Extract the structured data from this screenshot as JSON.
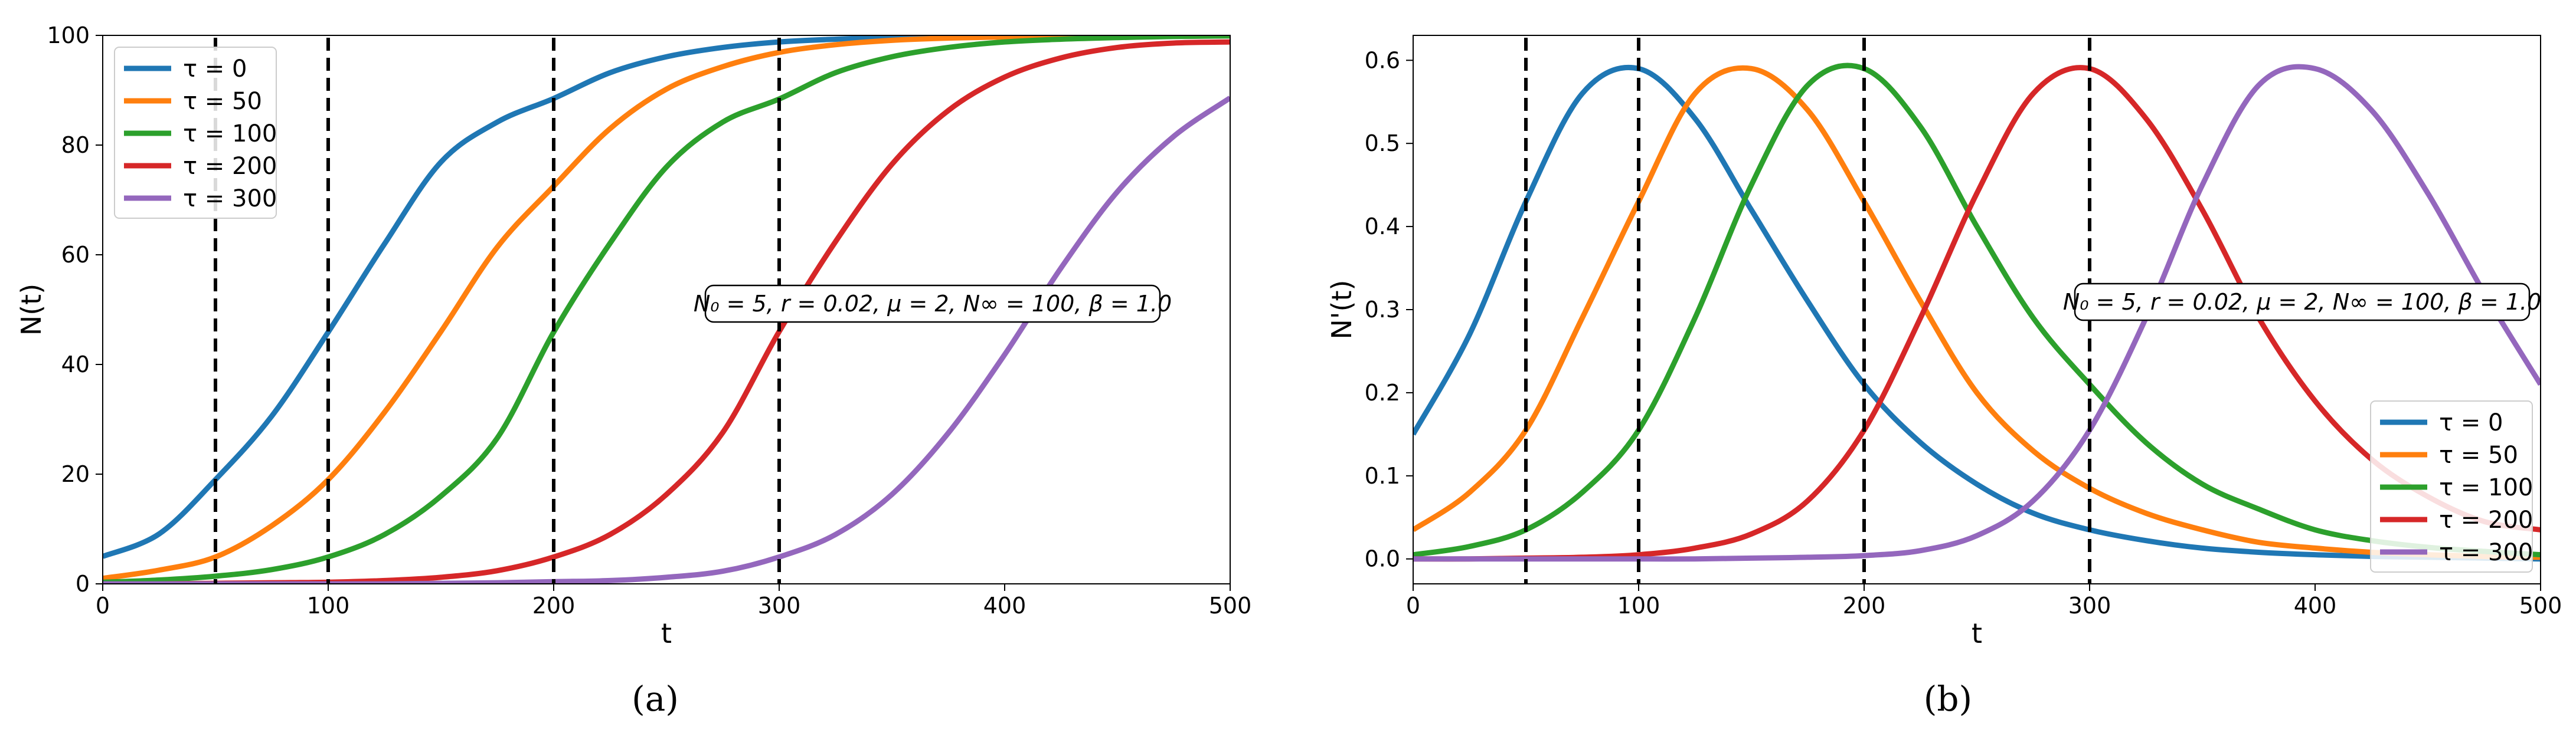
{
  "chart_data": [
    {
      "type": "line",
      "panel_id": "a",
      "caption": "(a)",
      "title": "",
      "xlabel": "t",
      "ylabel": "N(t)",
      "xlim": [
        0,
        500
      ],
      "ylim": [
        0,
        100
      ],
      "xticks": [
        0,
        100,
        200,
        300,
        400,
        500
      ],
      "yticks": [
        0,
        20,
        40,
        60,
        80,
        100
      ],
      "grid": false,
      "legend_position": "top-left",
      "annotation": "N₀ = 5, r = 0.02, μ = 2, N∞ = 100, β = 1.0",
      "vlines": [
        50,
        100,
        200,
        300
      ],
      "x": [
        0,
        25,
        50,
        75,
        100,
        125,
        150,
        175,
        200,
        225,
        250,
        275,
        300,
        325,
        350,
        375,
        400,
        425,
        450,
        475,
        500
      ],
      "series": [
        {
          "name": "τ = 0",
          "color": "#1f77b4",
          "values": [
            5.0,
            9.1,
            19.0,
            30.6,
            45.9,
            62.0,
            76.9,
            84.2,
            88.5,
            93.2,
            96.1,
            97.8,
            98.8,
            99.3,
            99.6,
            99.8,
            99.9,
            99.9,
            100.0,
            100.0,
            100.0
          ]
        },
        {
          "name": "τ = 50",
          "color": "#ff7f0e",
          "values": [
            1.0,
            2.5,
            4.9,
            10.6,
            19.0,
            31.3,
            46.0,
            61.4,
            72.5,
            83.0,
            90.2,
            94.3,
            96.9,
            98.3,
            99.1,
            99.5,
            99.7,
            99.8,
            99.9,
            100.0,
            100.0
          ]
        },
        {
          "name": "τ = 100",
          "color": "#2ca02c",
          "values": [
            0.3,
            0.7,
            1.4,
            2.6,
            4.9,
            9.0,
            16.0,
            26.6,
            45.9,
            62.1,
            76.0,
            84.2,
            88.4,
            93.2,
            96.1,
            97.8,
            98.8,
            99.3,
            99.6,
            99.8,
            99.9
          ]
        },
        {
          "name": "τ = 200",
          "color": "#d62728",
          "values": [
            0.0,
            0.0,
            0.1,
            0.2,
            0.3,
            0.6,
            1.2,
            2.4,
            4.9,
            9.0,
            16.3,
            27.6,
            46.0,
            62.4,
            76.5,
            86.3,
            92.4,
            95.9,
            97.8,
            98.6,
            98.8
          ]
        },
        {
          "name": "τ = 300",
          "color": "#9467bd",
          "values": [
            0.0,
            0.0,
            0.0,
            0.0,
            0.0,
            0.0,
            0.1,
            0.2,
            0.4,
            0.6,
            1.2,
            2.3,
            4.9,
            9.0,
            16.3,
            27.5,
            41.8,
            57.6,
            71.5,
            81.6,
            88.6
          ]
        }
      ]
    },
    {
      "type": "line",
      "panel_id": "b",
      "caption": "(b)",
      "title": "",
      "xlabel": "t",
      "ylabel": "N'(t)",
      "xlim": [
        0,
        500
      ],
      "ylim": [
        -0.03,
        0.63
      ],
      "xticks": [
        0,
        100,
        200,
        300,
        400,
        500
      ],
      "yticks": [
        0.0,
        0.1,
        0.2,
        0.3,
        0.4,
        0.5,
        0.6
      ],
      "ytick_labels": [
        "0.0",
        "0.1",
        "0.2",
        "0.3",
        "0.4",
        "0.5",
        "0.6"
      ],
      "grid": false,
      "legend_position": "bottom-right",
      "annotation": "N₀ = 5, r = 0.02, μ = 2, N∞ = 100, β = 1.0",
      "vlines": [
        50,
        100,
        200,
        300
      ],
      "x": [
        0,
        25,
        50,
        75,
        100,
        125,
        150,
        175,
        200,
        225,
        250,
        275,
        300,
        325,
        350,
        375,
        400,
        425,
        450,
        475,
        500
      ],
      "series": [
        {
          "name": "τ = 0",
          "color": "#1f77b4",
          "values": [
            0.15,
            0.27,
            0.43,
            0.56,
            0.59,
            0.53,
            0.42,
            0.31,
            0.21,
            0.14,
            0.09,
            0.055,
            0.035,
            0.022,
            0.013,
            0.008,
            0.005,
            0.003,
            0.002,
            0.001,
            0.0
          ]
        },
        {
          "name": "τ = 50",
          "color": "#ff7f0e",
          "values": [
            0.035,
            0.08,
            0.155,
            0.29,
            0.43,
            0.56,
            0.59,
            0.54,
            0.43,
            0.31,
            0.2,
            0.13,
            0.085,
            0.055,
            0.035,
            0.02,
            0.013,
            0.008,
            0.005,
            0.003,
            0.002
          ]
        },
        {
          "name": "τ = 100",
          "color": "#2ca02c",
          "values": [
            0.005,
            0.015,
            0.035,
            0.08,
            0.155,
            0.29,
            0.45,
            0.57,
            0.59,
            0.52,
            0.4,
            0.29,
            0.21,
            0.14,
            0.09,
            0.06,
            0.035,
            0.022,
            0.014,
            0.009,
            0.005
          ]
        },
        {
          "name": "τ = 200",
          "color": "#d62728",
          "values": [
            0.0,
            0.0,
            0.001,
            0.002,
            0.005,
            0.013,
            0.03,
            0.07,
            0.155,
            0.29,
            0.44,
            0.56,
            0.59,
            0.53,
            0.42,
            0.29,
            0.19,
            0.12,
            0.075,
            0.045,
            0.035
          ]
        },
        {
          "name": "τ = 300",
          "color": "#9467bd",
          "values": [
            0.0,
            0.0,
            0.0,
            0.0,
            0.0,
            0.0,
            0.001,
            0.002,
            0.004,
            0.01,
            0.028,
            0.07,
            0.155,
            0.29,
            0.45,
            0.57,
            0.59,
            0.54,
            0.44,
            0.32,
            0.21
          ]
        }
      ]
    }
  ]
}
